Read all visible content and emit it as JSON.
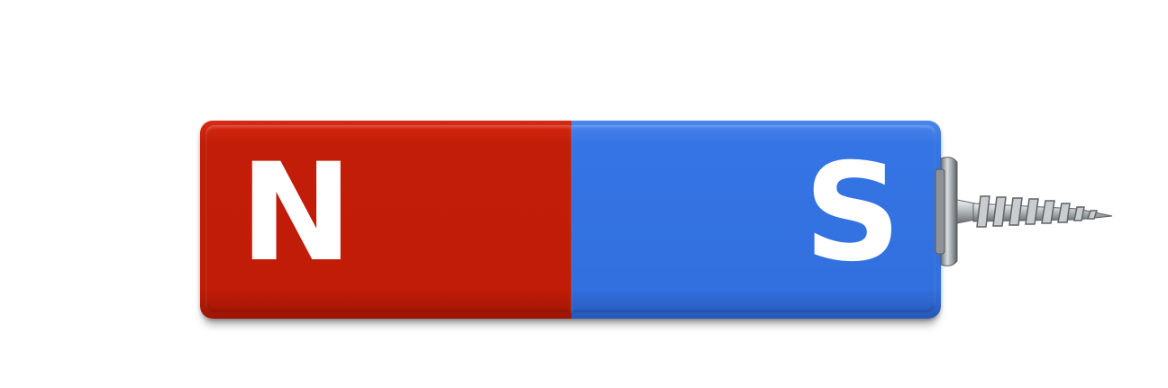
{
  "magnet": {
    "north_label": "N",
    "south_label": "S",
    "north_color": "#c21d08",
    "south_color": "#3270df"
  },
  "attached_object": {
    "icon": "screw-icon"
  }
}
